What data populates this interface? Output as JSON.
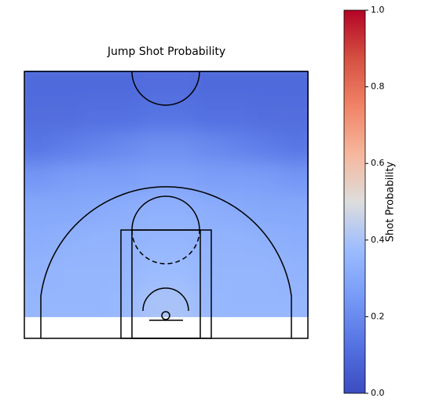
{
  "chart_data": {
    "type": "heatmap",
    "title": "Jump Shot Probability",
    "colorbar_label": "Shot Probability",
    "colormap": "coolwarm",
    "clim": [
      0,
      1
    ],
    "cticks": [
      {
        "value": 0,
        "label": "0.0"
      },
      {
        "value": 0.2,
        "label": "0.2"
      },
      {
        "value": 0.4,
        "label": "0.4"
      },
      {
        "value": 0.6,
        "label": "0.6"
      },
      {
        "value": 0.8,
        "label": "0.8"
      },
      {
        "value": 1,
        "label": "1.0"
      }
    ],
    "z": [
      [
        0.1,
        0.1,
        0.1,
        0.1,
        0.11,
        0.11,
        0.1,
        0.1,
        0.1,
        0.1
      ],
      [
        0.11,
        0.11,
        0.12,
        0.12,
        0.13,
        0.13,
        0.12,
        0.12,
        0.11,
        0.11
      ],
      [
        0.14,
        0.16,
        0.18,
        0.2,
        0.22,
        0.22,
        0.2,
        0.18,
        0.16,
        0.14
      ],
      [
        0.24,
        0.26,
        0.27,
        0.27,
        0.28,
        0.28,
        0.27,
        0.27,
        0.26,
        0.24
      ],
      [
        0.3,
        0.3,
        0.31,
        0.32,
        0.33,
        0.33,
        0.32,
        0.31,
        0.3,
        0.3
      ],
      [
        0.32,
        0.33,
        0.34,
        0.34,
        0.35,
        0.35,
        0.34,
        0.34,
        0.33,
        0.32
      ],
      [
        0.34,
        0.35,
        0.35,
        0.35,
        0.37,
        0.37,
        0.35,
        0.35,
        0.35,
        0.34
      ],
      [
        0.35,
        0.35,
        0.35,
        0.36,
        0.4,
        0.4,
        0.36,
        0.35,
        0.35,
        0.35
      ]
    ]
  }
}
